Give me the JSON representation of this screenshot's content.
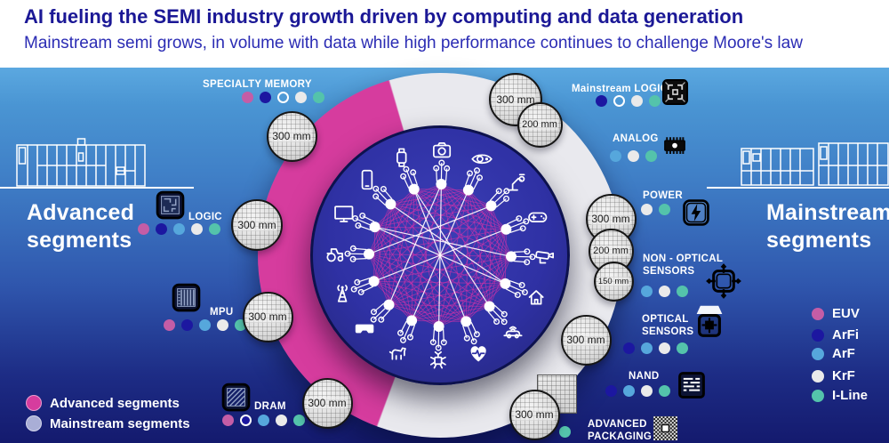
{
  "header": {
    "title": "AI fueling the SEMI industry growth driven by computing and data generation",
    "subtitle": "Mainstream semi grows, in volume with data while high performance continues to challenge Moore's law"
  },
  "side_labels": {
    "left_line1": "Advanced",
    "left_line2": "segments",
    "right_line1": "Mainstream",
    "right_line2": "segments"
  },
  "litho_legend": {
    "items": [
      {
        "id": "euv",
        "label": "EUV",
        "color": "#c45da6"
      },
      {
        "id": "arfi",
        "label": "ArFi",
        "color": "#1c17a0"
      },
      {
        "id": "arf",
        "label": "ArF",
        "color": "#56a7dc"
      },
      {
        "id": "krf",
        "label": "KrF",
        "color": "#eaeaea"
      },
      {
        "id": "iline",
        "label": "I-Line",
        "color": "#54c3ab"
      }
    ]
  },
  "segment_legend": {
    "items": [
      {
        "id": "advanced",
        "label": "Advanced segments",
        "color": "#d63c9e"
      },
      {
        "id": "mainstream",
        "label": "Mainstream segments",
        "color": "#a9aed6"
      }
    ]
  },
  "segments": [
    {
      "id": "specialty-memory",
      "label_lines": [
        "SPECIALTY MEMORY"
      ],
      "dots": [
        "euv",
        "arfi",
        "hollow",
        "krf",
        "iline"
      ],
      "icon": null
    },
    {
      "id": "logic",
      "label_lines": [
        "LOGIC"
      ],
      "dots": [
        "euv",
        "arfi",
        "arf",
        "krf",
        "iline"
      ],
      "icon": "logic-adv"
    },
    {
      "id": "mpu",
      "label_lines": [
        "MPU"
      ],
      "dots": [
        "euv",
        "arfi",
        "arf",
        "krf",
        "iline"
      ],
      "icon": "mpu"
    },
    {
      "id": "dram",
      "label_lines": [
        "DRAM"
      ],
      "dots": [
        "euv",
        "arfi-ring",
        "arf",
        "krf",
        "iline"
      ],
      "icon": "dram"
    },
    {
      "id": "mainstream-logic",
      "label_lines": [
        "Mainstream LOGIC"
      ],
      "dots": [
        "arfi",
        "hollow",
        "krf",
        "iline"
      ],
      "icon": "logic-main"
    },
    {
      "id": "analog",
      "label_lines": [
        "ANALOG"
      ],
      "dots": [
        "arf",
        "krf",
        "iline"
      ],
      "icon": "analog"
    },
    {
      "id": "power",
      "label_lines": [
        "POWER"
      ],
      "dots": [
        "krf",
        "iline"
      ],
      "icon": "power"
    },
    {
      "id": "non-optical-sensors",
      "label_lines": [
        "NON - OPTICAL",
        "SENSORS"
      ],
      "dots": [
        "arf",
        "krf",
        "iline"
      ],
      "icon": "nonopt"
    },
    {
      "id": "optical-sensors",
      "label_lines": [
        "OPTICAL",
        "SENSORS"
      ],
      "dots": [
        "arfi",
        "arf",
        "krf",
        "iline"
      ],
      "icon": "optical"
    },
    {
      "id": "nand",
      "label_lines": [
        "NAND"
      ],
      "dots": [
        "arfi",
        "arf",
        "krf",
        "iline"
      ],
      "icon": "nand"
    },
    {
      "id": "advanced-packaging",
      "label_lines": [
        "ADVANCED",
        "PACKAGING"
      ],
      "dots": [
        "iline"
      ],
      "icon": "advpkg"
    }
  ],
  "wafers": [
    {
      "id": "w1",
      "label": "300 mm"
    },
    {
      "id": "w2",
      "label": "300 mm"
    },
    {
      "id": "w3",
      "label": "200 mm"
    },
    {
      "id": "w4",
      "label": "300 mm"
    },
    {
      "id": "w5",
      "label": "300 mm"
    },
    {
      "id": "w6",
      "label": "300 mm"
    },
    {
      "id": "w7",
      "label": "200 mm"
    },
    {
      "id": "w8",
      "label": "150 mm"
    },
    {
      "id": "w9",
      "label": "300 mm"
    },
    {
      "id": "w10",
      "label": "300 mm"
    },
    {
      "id": "w11",
      "label": "300 mm"
    }
  ],
  "network": {
    "icons": [
      "smartphone-icon",
      "smartwatch-icon",
      "camera-icon",
      "vision-icon",
      "robot-arm-icon",
      "gamepad-icon",
      "cctv-icon",
      "smart-home-icon",
      "connected-car-icon",
      "heart-monitor-icon",
      "iot-bot-icon",
      "dog-icon",
      "vr-headset-icon",
      "radio-tower-icon",
      "tractor-icon",
      "monitor-icon"
    ]
  },
  "colors": {
    "advanced_ring": "#d63c9e",
    "mainstream_ring": "#e9e9ee",
    "inner_circle": "#2f31a4",
    "background_top": "#5ba8e0",
    "background_bottom": "#141a6e",
    "web": "#e530a8"
  }
}
